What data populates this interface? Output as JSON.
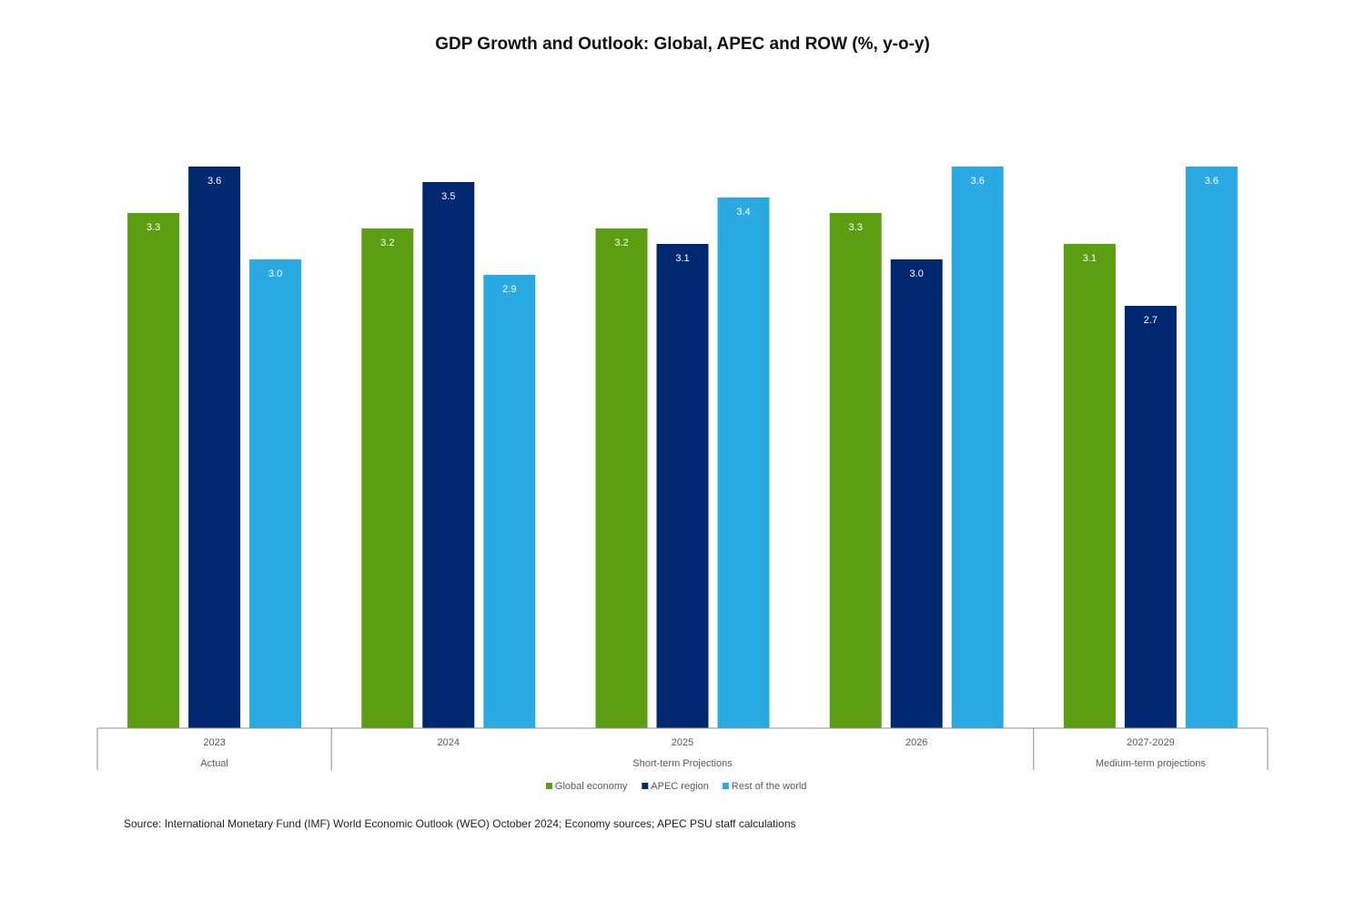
{
  "title": "GDP Growth and Outlook: Global, APEC and ROW (%, y-o-y)",
  "source": "Source: International Monetary Fund (IMF) World Economic Outlook (WEO) October 2024; Economy sources; APEC PSU staff calculations",
  "chart_data": {
    "type": "bar",
    "title": "GDP Growth and Outlook: Global, APEC and ROW (%, y-o-y)",
    "categories": [
      "2023",
      "2024",
      "2025",
      "2026",
      "2027-2029"
    ],
    "groups": [
      {
        "label": "Actual",
        "categories": [
          "2023"
        ]
      },
      {
        "label": "Short-term Projections",
        "categories": [
          "2024",
          "2025",
          "2026"
        ]
      },
      {
        "label": "Medium-term projections",
        "categories": [
          "2027-2029"
        ]
      }
    ],
    "series": [
      {
        "name": "Global economy",
        "color": "#5b9e12",
        "values": [
          3.3,
          3.2,
          3.2,
          3.3,
          3.1
        ]
      },
      {
        "name": "APEC region",
        "color": "#002871",
        "values": [
          3.6,
          3.5,
          3.1,
          3.0,
          2.7
        ]
      },
      {
        "name": "Rest of the world",
        "color": "#2aaae2",
        "values": [
          3.0,
          2.9,
          3.4,
          3.6,
          3.6
        ]
      }
    ],
    "legend_position": "bottom",
    "grid": false,
    "data_labels": true
  }
}
